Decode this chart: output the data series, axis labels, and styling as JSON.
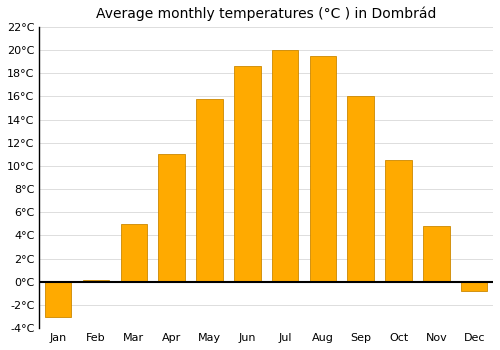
{
  "title": "Average monthly temperatures (°C ) in Dombrád",
  "months": [
    "Jan",
    "Feb",
    "Mar",
    "Apr",
    "May",
    "Jun",
    "Jul",
    "Aug",
    "Sep",
    "Oct",
    "Nov",
    "Dec"
  ],
  "values": [
    -3.0,
    0.2,
    5.0,
    11.0,
    15.8,
    18.6,
    20.0,
    19.5,
    16.0,
    10.5,
    4.8,
    -0.8
  ],
  "bar_color": "#FFAA00",
  "bar_edge_color": "#CC8800",
  "background_color": "#ffffff",
  "grid_color": "#dddddd",
  "ylim": [
    -4,
    22
  ],
  "yticks": [
    -4,
    -2,
    0,
    2,
    4,
    6,
    8,
    10,
    12,
    14,
    16,
    18,
    20,
    22
  ],
  "title_fontsize": 10,
  "tick_fontsize": 8,
  "bar_width": 0.7
}
